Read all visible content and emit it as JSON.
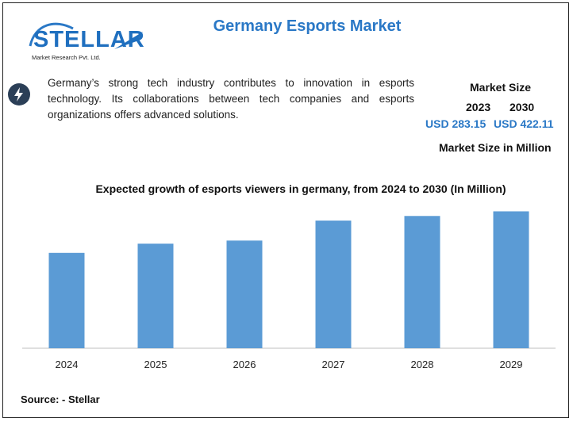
{
  "brand": {
    "name": "STELLAR",
    "tagline": "Market Research Pvt. Ltd."
  },
  "title": "Germany Esports Market",
  "intro_text": "Germany’s strong tech industry contributes to innovation in esports technology. Its collaborations between tech companies and esports organizations offers advanced solutions.",
  "market": {
    "label": "Market Size",
    "years": [
      "2023",
      "2030"
    ],
    "values": [
      "USD 283.15",
      "USD 422.11"
    ],
    "unit_label": "Market Size in Million"
  },
  "colors": {
    "accent": "#2a78c6",
    "bar": "#5b9bd5",
    "icon_bg": "#2b3f57"
  },
  "chart_data": {
    "type": "bar",
    "title": "Expected growth of esports viewers in germany, from 2024 to 2030 (In Million)",
    "categories": [
      "2024",
      "2025",
      "2026",
      "2027",
      "2028",
      "2029"
    ],
    "values": [
      6.2,
      6.8,
      7.0,
      8.3,
      8.6,
      8.9
    ],
    "ylim": [
      0,
      9.8
    ],
    "xlabel": "",
    "ylabel": ""
  },
  "source": "Source: - Stellar"
}
